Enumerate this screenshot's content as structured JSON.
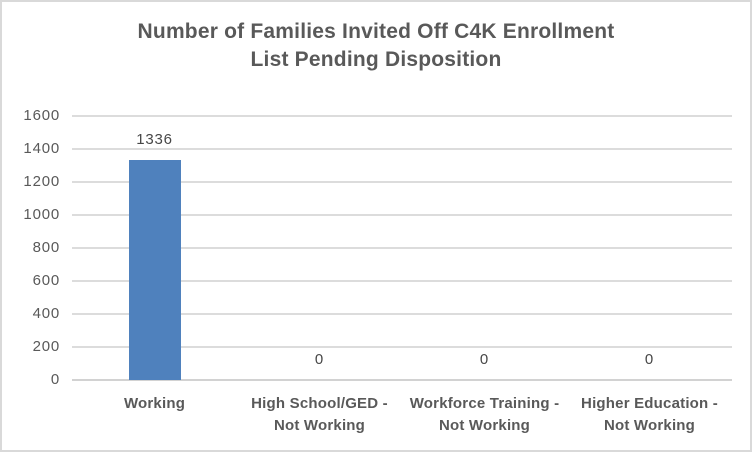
{
  "chart": {
    "background": "#ffffff",
    "border_color": "#d9d9d9"
  },
  "chart_data": {
    "type": "bar",
    "title": "Number of Families Invited Off C4K Enrollment List Pending Disposition",
    "title_lines": [
      "Number of Families Invited Off C4K Enrollment",
      "List Pending Disposition"
    ],
    "categories": [
      "Working",
      "High School/GED - Not Working",
      "Workforce Training - Not Working",
      "Higher Education - Not Working"
    ],
    "category_lines": [
      [
        "Working"
      ],
      [
        "High School/GED -",
        "Not Working"
      ],
      [
        "Workforce Training -",
        "Not Working"
      ],
      [
        "Higher Education -",
        "Not Working"
      ]
    ],
    "values": [
      1336,
      0,
      0,
      0
    ],
    "data_labels": [
      "1336",
      "0",
      "0",
      "0"
    ],
    "ylim": [
      0,
      1600
    ],
    "yticks": [
      0,
      200,
      400,
      600,
      800,
      1000,
      1200,
      1400,
      1600
    ],
    "grid": true,
    "legend": false,
    "bar_color": "#4f81bd",
    "title_color": "#595959",
    "axis_text_color": "#595959",
    "data_label_color": "#474747",
    "gridline_color": "#dcdcdc"
  }
}
